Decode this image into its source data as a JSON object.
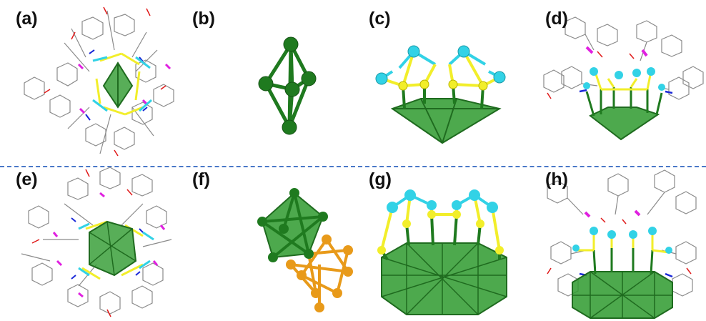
{
  "panels": [
    {
      "label": "(a)"
    },
    {
      "label": "(b)"
    },
    {
      "label": "(c)"
    },
    {
      "label": "(d)"
    },
    {
      "label": "(e)"
    },
    {
      "label": "(f)"
    },
    {
      "label": "(g)"
    },
    {
      "label": "(h)"
    }
  ],
  "colors": {
    "metal_core": "#2e8b2e",
    "metal_core_dark": "#1f6b1f",
    "core_fill": "#2e9a2e",
    "second_core": "#e89a1a",
    "cyan_atom": "#32d2e6",
    "sulfur": "#f2ee2a",
    "phosphorus": "#e020e0",
    "nitrogen": "#1a28d8",
    "oxygen": "#e01818",
    "ligand": "#8a8a8a",
    "divider": "#4a78c8"
  }
}
